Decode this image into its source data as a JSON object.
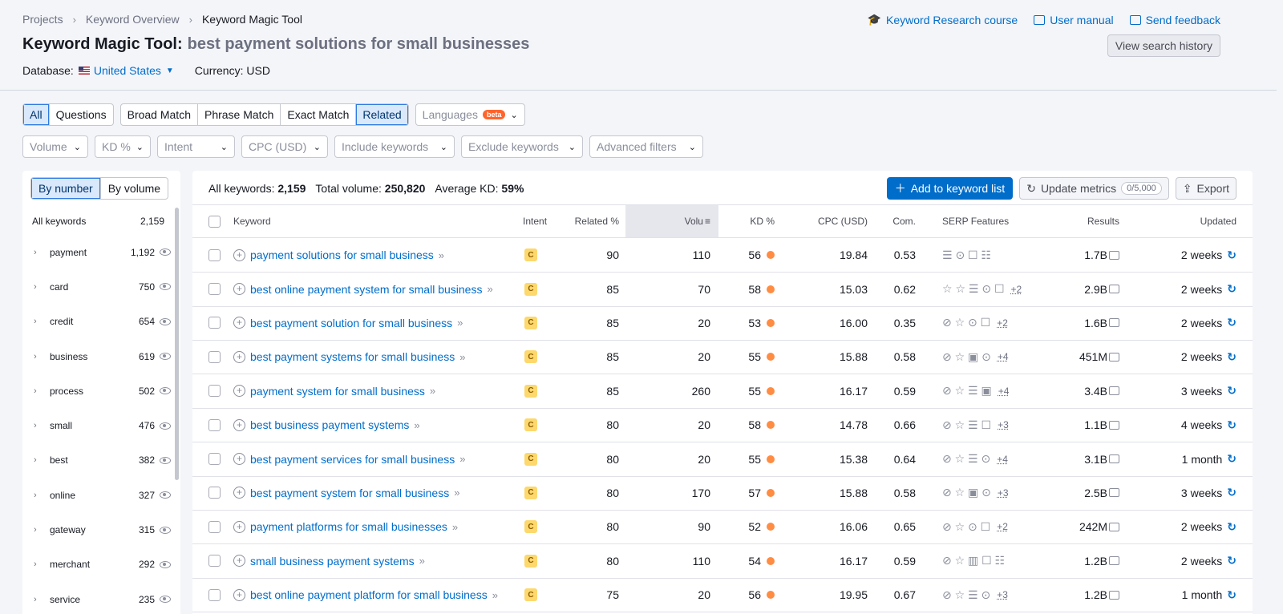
{
  "breadcrumb": [
    "Projects",
    "Keyword Overview",
    "Keyword Magic Tool"
  ],
  "title": {
    "label": "Keyword Magic Tool:",
    "query": "best payment solutions for small businesses"
  },
  "database": {
    "label": "Database:",
    "value": "United States",
    "currency": "Currency: USD"
  },
  "toplinks": {
    "course": "Keyword Research course",
    "manual": "User manual",
    "feedback": "Send feedback"
  },
  "history_button": "View search history",
  "match_tabs": {
    "all": "All",
    "questions": "Questions",
    "broad": "Broad Match",
    "phrase": "Phrase Match",
    "exact": "Exact Match",
    "related": "Related"
  },
  "languages": {
    "label": "Languages",
    "badge": "beta"
  },
  "filters": {
    "volume": "Volume",
    "kd": "KD %",
    "intent": "Intent",
    "cpc": "CPC (USD)",
    "include": "Include keywords",
    "exclude": "Exclude keywords",
    "advanced": "Advanced filters"
  },
  "sidebar": {
    "by_number": "By number",
    "by_volume": "By volume",
    "all_label": "All keywords",
    "all_count": "2,159",
    "groups": [
      {
        "label": "payment",
        "count": "1,192"
      },
      {
        "label": "card",
        "count": "750"
      },
      {
        "label": "credit",
        "count": "654"
      },
      {
        "label": "business",
        "count": "619"
      },
      {
        "label": "process",
        "count": "502"
      },
      {
        "label": "small",
        "count": "476"
      },
      {
        "label": "best",
        "count": "382"
      },
      {
        "label": "online",
        "count": "327"
      },
      {
        "label": "gateway",
        "count": "315"
      },
      {
        "label": "merchant",
        "count": "292"
      },
      {
        "label": "service",
        "count": "235"
      }
    ]
  },
  "summary": {
    "all_label": "All keywords:",
    "all_value": "2,159",
    "volume_label": "Total volume:",
    "volume_value": "250,820",
    "kd_label": "Average KD:",
    "kd_value": "59%"
  },
  "actions": {
    "add": "Add to keyword list",
    "update": "Update metrics",
    "quota": "0/5,000",
    "export": "Export"
  },
  "columns": {
    "keyword": "Keyword",
    "intent": "Intent",
    "related": "Related %",
    "volume": "Volu",
    "kd": "KD %",
    "cpc": "CPC (USD)",
    "com": "Com.",
    "serp": "SERP Features",
    "results": "Results",
    "updated": "Updated"
  },
  "rows": [
    {
      "keyword": "payment solutions for small business",
      "intent": "C",
      "related": "90",
      "volume": "110",
      "kd": "56",
      "cpc": "19.84",
      "com": "0.53",
      "serp": "☰ ⊙ ☐ ☷",
      "more": "",
      "results": "1.7B",
      "updated": "2 weeks"
    },
    {
      "keyword": "best online payment system for small business",
      "intent": "C",
      "related": "85",
      "volume": "70",
      "kd": "58",
      "cpc": "15.03",
      "com": "0.62",
      "serp": "☆ ☆ ☰ ⊙ ☐",
      "more": "+2",
      "results": "2.9B",
      "updated": "2 weeks"
    },
    {
      "keyword": "best payment solution for small business",
      "intent": "C",
      "related": "85",
      "volume": "20",
      "kd": "53",
      "cpc": "16.00",
      "com": "0.35",
      "serp": "⊘ ☆ ⊙ ☐",
      "more": "+2",
      "results": "1.6B",
      "updated": "2 weeks"
    },
    {
      "keyword": "best payment systems for small business",
      "intent": "C",
      "related": "85",
      "volume": "20",
      "kd": "55",
      "cpc": "15.88",
      "com": "0.58",
      "serp": "⊘ ☆ ▣ ⊙",
      "more": "+4",
      "results": "451M",
      "updated": "2 weeks"
    },
    {
      "keyword": "payment system for small business",
      "intent": "C",
      "related": "85",
      "volume": "260",
      "kd": "55",
      "cpc": "16.17",
      "com": "0.59",
      "serp": "⊘ ☆ ☰ ▣",
      "more": "+4",
      "results": "3.4B",
      "updated": "3 weeks"
    },
    {
      "keyword": "best business payment systems",
      "intent": "C",
      "related": "80",
      "volume": "20",
      "kd": "58",
      "cpc": "14.78",
      "com": "0.66",
      "serp": "⊘ ☆ ☰ ☐",
      "more": "+3",
      "results": "1.1B",
      "updated": "4 weeks"
    },
    {
      "keyword": "best payment services for small business",
      "intent": "C",
      "related": "80",
      "volume": "20",
      "kd": "55",
      "cpc": "15.38",
      "com": "0.64",
      "serp": "⊘ ☆ ☰ ⊙",
      "more": "+4",
      "results": "3.1B",
      "updated": "1 month"
    },
    {
      "keyword": "best payment system for small business",
      "intent": "C",
      "related": "80",
      "volume": "170",
      "kd": "57",
      "cpc": "15.88",
      "com": "0.58",
      "serp": "⊘ ☆ ▣ ⊙",
      "more": "+3",
      "results": "2.5B",
      "updated": "3 weeks"
    },
    {
      "keyword": "payment platforms for small businesses",
      "intent": "C",
      "related": "80",
      "volume": "90",
      "kd": "52",
      "cpc": "16.06",
      "com": "0.65",
      "serp": "⊘ ☆ ⊙ ☐",
      "more": "+2",
      "results": "242M",
      "updated": "2 weeks"
    },
    {
      "keyword": "small business payment systems",
      "intent": "C",
      "related": "80",
      "volume": "110",
      "kd": "54",
      "cpc": "16.17",
      "com": "0.59",
      "serp": "⊘ ☆ ▥ ☐ ☷",
      "more": "",
      "results": "1.2B",
      "updated": "2 weeks"
    },
    {
      "keyword": "best online payment platform for small business",
      "intent": "C",
      "related": "75",
      "volume": "20",
      "kd": "56",
      "cpc": "19.95",
      "com": "0.67",
      "serp": "⊘ ☆ ☰ ⊙",
      "more": "+3",
      "results": "1.2B",
      "updated": "1 month"
    }
  ],
  "colors": {
    "accent": "#006dca",
    "kd_dot": "#ff8c43",
    "intent_badge": "#fcd86d"
  }
}
